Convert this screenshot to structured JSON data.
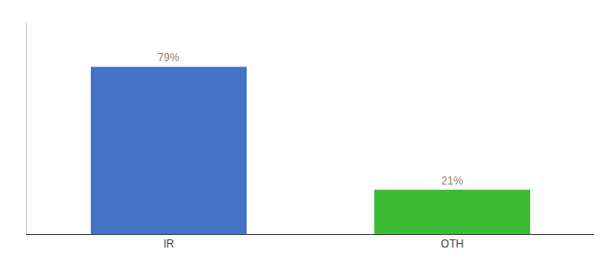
{
  "chart_data": {
    "type": "bar",
    "categories": [
      "IR",
      "OTH"
    ],
    "values": [
      79,
      21
    ],
    "value_labels": [
      "79%",
      "21%"
    ],
    "data_labels": true,
    "colors": [
      "#4472c4",
      "#3dbb35"
    ],
    "ylim": [
      0,
      100
    ],
    "grid": false,
    "tick_labels": "x"
  }
}
